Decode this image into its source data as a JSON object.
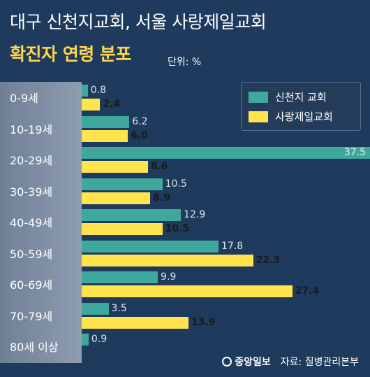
{
  "title_line1": "대구 신천지교회, 서울 사랑제일교회",
  "title_line2": "확진자 연령 분포",
  "unit_label": "단위: %",
  "source": {
    "logo_text": "중앙일보",
    "text": "자료: 질병관리본부"
  },
  "colors": {
    "background": "#1e3a5c",
    "series1": "#3fa89c",
    "series2": "#ffe44e",
    "title_accent": "#ffd64d"
  },
  "chart_data": {
    "type": "bar",
    "orientation": "horizontal",
    "categories": [
      "0-9세",
      "10-19세",
      "20-29세",
      "30-39세",
      "40-49세",
      "50-59세",
      "60-69세",
      "70-79세",
      "80세 이상"
    ],
    "series": [
      {
        "name": "신천지 교회",
        "values": [
          0.8,
          6.2,
          37.5,
          10.5,
          12.9,
          17.8,
          9.9,
          3.5,
          0.9
        ]
      },
      {
        "name": "사랑제일교회",
        "values": [
          2.4,
          6.0,
          8.6,
          8.9,
          10.5,
          22.3,
          27.4,
          13.9,
          null
        ]
      }
    ],
    "value_labels": [
      [
        "0.8",
        "6.2",
        "37.5",
        "10.5",
        "12.9",
        "17.8",
        "9.9",
        "3.5",
        "0.9"
      ],
      [
        "2.4",
        "6.0",
        "8.6",
        "8.9",
        "10.5",
        "22.3",
        "27.4",
        "13.9",
        ""
      ]
    ],
    "xlim": [
      0,
      37.5
    ],
    "legend_position": "top-right",
    "grid": false
  }
}
